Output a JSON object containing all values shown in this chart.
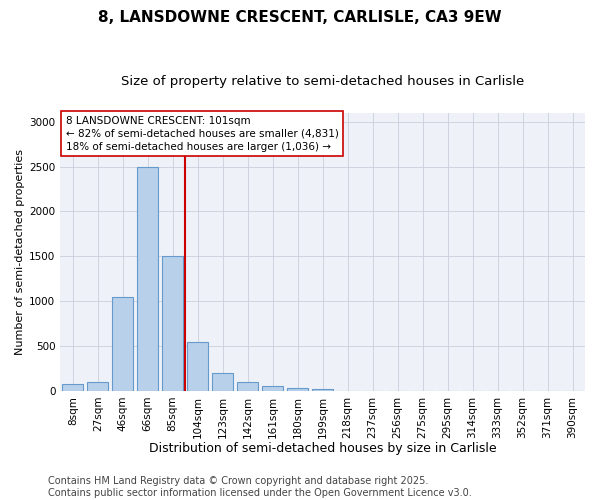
{
  "title1": "8, LANSDOWNE CRESCENT, CARLISLE, CA3 9EW",
  "title2": "Size of property relative to semi-detached houses in Carlisle",
  "xlabel": "Distribution of semi-detached houses by size in Carlisle",
  "ylabel": "Number of semi-detached properties",
  "categories": [
    "8sqm",
    "27sqm",
    "46sqm",
    "66sqm",
    "85sqm",
    "104sqm",
    "123sqm",
    "142sqm",
    "161sqm",
    "180sqm",
    "199sqm",
    "218sqm",
    "237sqm",
    "256sqm",
    "275sqm",
    "295sqm",
    "314sqm",
    "333sqm",
    "352sqm",
    "371sqm",
    "390sqm"
  ],
  "values": [
    75,
    100,
    1050,
    2500,
    1500,
    550,
    200,
    100,
    55,
    35,
    20,
    0,
    0,
    0,
    0,
    0,
    0,
    0,
    0,
    0,
    0
  ],
  "bar_color": "#b8d0ea",
  "bar_edge_color": "#6699cc",
  "vline_x_idx": 5,
  "vline_color": "#cc0000",
  "annotation_text": "8 LANSDOWNE CRESCENT: 101sqm\n← 82% of semi-detached houses are smaller (4,831)\n18% of semi-detached houses are larger (1,036) →",
  "annotation_box_color": "#ffffff",
  "annotation_box_edge": "#cc0000",
  "footer": "Contains HM Land Registry data © Crown copyright and database right 2025.\nContains public sector information licensed under the Open Government Licence v3.0.",
  "ylim": [
    0,
    3100
  ],
  "yticks": [
    0,
    500,
    1000,
    1500,
    2000,
    2500,
    3000
  ],
  "plot_bg_color": "#eef2f8",
  "title1_fontsize": 11,
  "title2_fontsize": 9.5,
  "xlabel_fontsize": 9,
  "ylabel_fontsize": 8,
  "tick_fontsize": 7.5,
  "annot_fontsize": 7.5,
  "footer_fontsize": 7
}
